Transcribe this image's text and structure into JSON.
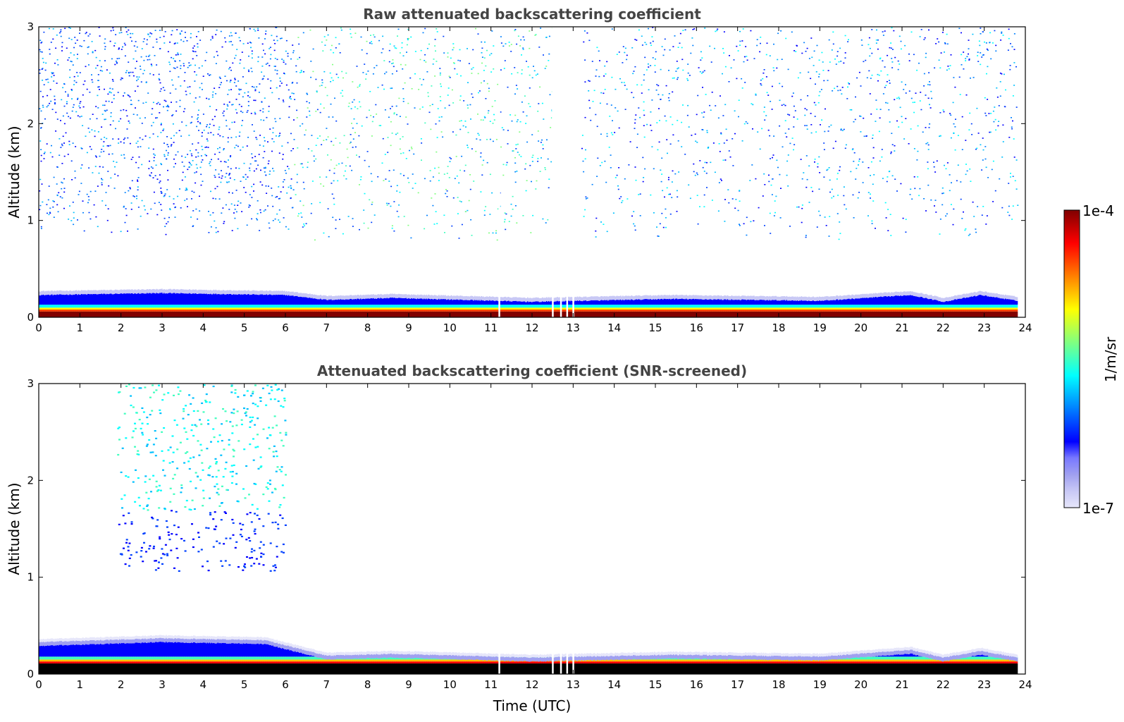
{
  "chart_data": [
    {
      "type": "heatmap",
      "title": "Raw attenuated backscattering coefficient",
      "xlabel": "",
      "ylabel": "Altitude (km)",
      "xlim": [
        0,
        24
      ],
      "ylim": [
        0,
        3
      ],
      "x_ticks": [
        "0",
        "1",
        "2",
        "3",
        "4",
        "5",
        "6",
        "7",
        "8",
        "9",
        "10",
        "11",
        "12",
        "13",
        "14",
        "15",
        "16",
        "17",
        "18",
        "19",
        "20",
        "21",
        "22",
        "23",
        "24"
      ],
      "y_ticks": [
        "0",
        "1",
        "2",
        "3"
      ],
      "data_end_time": 23.8,
      "surface_layer_top_km": [
        {
          "t": 0,
          "km": 0.27
        },
        {
          "t": 3,
          "km": 0.29
        },
        {
          "t": 6,
          "km": 0.27
        },
        {
          "t": 7,
          "km": 0.22
        },
        {
          "t": 8.6,
          "km": 0.24
        },
        {
          "t": 12,
          "km": 0.2
        },
        {
          "t": 15.4,
          "km": 0.23
        },
        {
          "t": 19,
          "km": 0.21
        },
        {
          "t": 21.2,
          "km": 0.27
        },
        {
          "t": 22,
          "km": 0.2
        },
        {
          "t": 22.9,
          "km": 0.27
        },
        {
          "t": 23.8,
          "km": 0.21
        }
      ],
      "noise_regions": [
        {
          "t0": 0,
          "t1": 6.2,
          "z0": 0.85,
          "z1": 3.0,
          "density": 0.8,
          "level": "low"
        },
        {
          "t0": 6.2,
          "t1": 12.5,
          "z0": 0.8,
          "z1": 3.0,
          "density": 0.45,
          "level": "high"
        },
        {
          "t0": 13.2,
          "t1": 23.8,
          "z0": 0.8,
          "z1": 3.0,
          "density": 0.4,
          "level": "mid"
        }
      ],
      "data_gaps_utc": [
        11.2,
        12.5,
        12.7,
        12.85,
        13.0
      ]
    },
    {
      "type": "heatmap",
      "title": "Attenuated backscattering coefficient (SNR-screened)",
      "xlabel": "Time (UTC)",
      "ylabel": "Altitude (km)",
      "xlim": [
        0,
        24
      ],
      "ylim": [
        0,
        3
      ],
      "x_ticks": [
        "0",
        "1",
        "2",
        "3",
        "4",
        "5",
        "6",
        "7",
        "8",
        "9",
        "10",
        "11",
        "12",
        "13",
        "14",
        "15",
        "16",
        "17",
        "18",
        "19",
        "20",
        "21",
        "22",
        "23",
        "24"
      ],
      "y_ticks": [
        "0",
        "1",
        "2",
        "3"
      ],
      "data_end_time": 23.8,
      "surface_layer_top_km": [
        {
          "t": 0,
          "km": 0.36
        },
        {
          "t": 3,
          "km": 0.4
        },
        {
          "t": 5.5,
          "km": 0.38
        },
        {
          "t": 7,
          "km": 0.22
        },
        {
          "t": 8.6,
          "km": 0.24
        },
        {
          "t": 12,
          "km": 0.2
        },
        {
          "t": 15.4,
          "km": 0.23
        },
        {
          "t": 19,
          "km": 0.21
        },
        {
          "t": 21.2,
          "km": 0.28
        },
        {
          "t": 22,
          "km": 0.2
        },
        {
          "t": 22.9,
          "km": 0.27
        },
        {
          "t": 23.8,
          "km": 0.2
        }
      ],
      "cloud_features": [
        {
          "t0": 1.9,
          "t1": 6.0,
          "z0": 1.05,
          "z1": 3.0,
          "note": "screened aerosol/cloud patches"
        }
      ],
      "data_gaps_utc": [
        11.2,
        12.5,
        12.7,
        12.85,
        13.0
      ]
    }
  ],
  "colorbar": {
    "label": "1/m/sr",
    "max_label": "1e-4",
    "min_label": "1e-7",
    "scale": "log",
    "range": [
      1e-07,
      0.0001
    ],
    "colormap": "jet",
    "colors": [
      "#e6e6fa",
      "#c8c8f5",
      "#a0a0f0",
      "#7878ff",
      "#0000ff",
      "#0040ff",
      "#0080ff",
      "#00c0ff",
      "#00ffff",
      "#40ffbf",
      "#80ff80",
      "#c0ff40",
      "#ffff00",
      "#ffc000",
      "#ff8000",
      "#ff4000",
      "#ff0000",
      "#c00000",
      "#800000"
    ]
  }
}
